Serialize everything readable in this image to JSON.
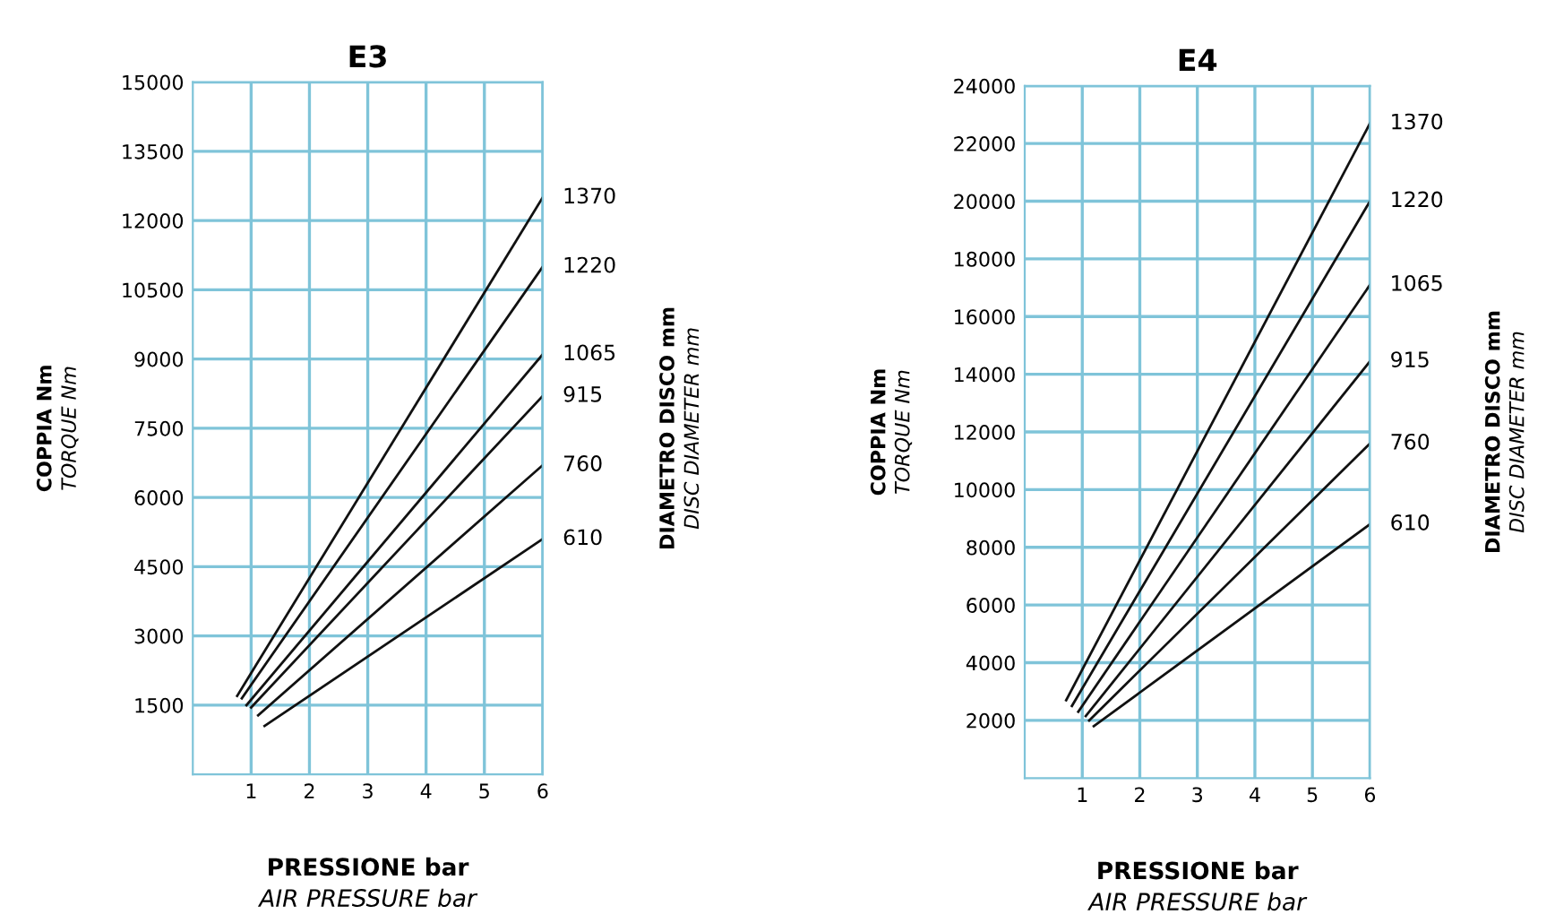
{
  "chart_data": [
    {
      "type": "line",
      "title": "E3",
      "xlabel": "PRESSIONE bar\nAIR PRESSURE bar",
      "ylabel": "COPPIA Nm\nTORQUE Nm",
      "y2label": "DIAMETRO DISCO mm\nDISC DIAMETER mm",
      "xlim": [
        0,
        6
      ],
      "ylim": [
        0,
        15000
      ],
      "xticks": [
        1,
        2,
        3,
        4,
        5,
        6
      ],
      "yticks": [
        1500,
        3000,
        4500,
        6000,
        7500,
        9000,
        10500,
        12000,
        13500,
        15000
      ],
      "grid": true,
      "series": [
        {
          "name": "1370",
          "color": "#111111",
          "x": [
            0.76,
            6
          ],
          "values": [
            1700,
            12500
          ]
        },
        {
          "name": "1220",
          "color": "#111111",
          "x": [
            0.84,
            6
          ],
          "values": [
            1650,
            11000
          ]
        },
        {
          "name": "1065",
          "color": "#111111",
          "x": [
            0.92,
            6
          ],
          "values": [
            1500,
            9100
          ]
        },
        {
          "name": "915",
          "color": "#111111",
          "x": [
            1.0,
            6
          ],
          "values": [
            1450,
            8200
          ]
        },
        {
          "name": "760",
          "color": "#111111",
          "x": [
            1.12,
            6
          ],
          "values": [
            1280,
            6700
          ]
        },
        {
          "name": "610",
          "color": "#111111",
          "x": [
            1.23,
            6
          ],
          "values": [
            1050,
            5100
          ]
        }
      ]
    },
    {
      "type": "line",
      "title": "E4",
      "xlabel": "PRESSIONE bar\nAIR PRESSURE bar",
      "ylabel": "COPPIA Nm\nTORQUE Nm",
      "y2label": "DIAMETRO DISCO mm\nDISC DIAMETER mm",
      "xlim": [
        0,
        6
      ],
      "ylim": [
        0,
        24000
      ],
      "xticks": [
        1,
        2,
        3,
        4,
        5,
        6
      ],
      "yticks": [
        2000,
        4000,
        6000,
        8000,
        10000,
        12000,
        14000,
        16000,
        18000,
        20000,
        22000,
        24000
      ],
      "grid": true,
      "series": [
        {
          "name": "1370",
          "color": "#111111",
          "x": [
            0.72,
            6
          ],
          "values": [
            2700,
            22700
          ]
        },
        {
          "name": "1220",
          "color": "#111111",
          "x": [
            0.82,
            6
          ],
          "values": [
            2500,
            20000
          ]
        },
        {
          "name": "1065",
          "color": "#111111",
          "x": [
            0.93,
            6
          ],
          "values": [
            2300,
            17100
          ]
        },
        {
          "name": "915",
          "color": "#111111",
          "x": [
            1.06,
            6
          ],
          "values": [
            2150,
            14450
          ]
        },
        {
          "name": "760",
          "color": "#111111",
          "x": [
            1.12,
            6
          ],
          "values": [
            2000,
            11600
          ]
        },
        {
          "name": "610",
          "color": "#111111",
          "x": [
            1.2,
            6
          ],
          "values": [
            1800,
            8800
          ]
        }
      ]
    }
  ]
}
